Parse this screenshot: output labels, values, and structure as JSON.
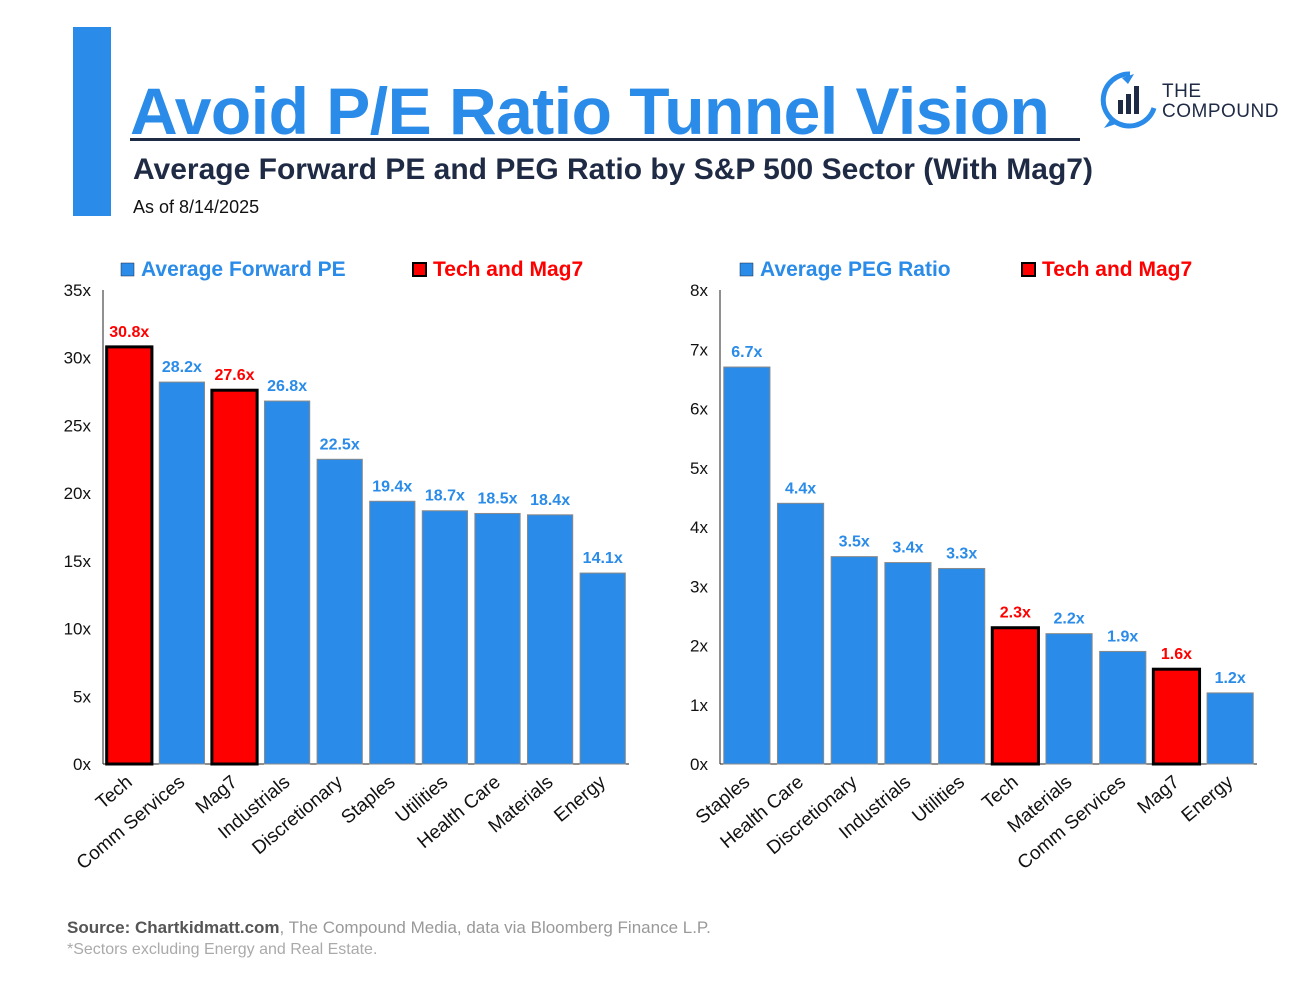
{
  "header": {
    "title": "Avoid P/E Ratio Tunnel Vision",
    "subtitle": "Average Forward PE and PEG Ratio by S&P 500 Sector (With Mag7)",
    "as_of": "As of 8/14/2025"
  },
  "brand": {
    "line1": "THE",
    "line2": "COMPOUND"
  },
  "colors": {
    "blue": "#2a8be8",
    "red": "#ff0000",
    "dark": "#1f2a44"
  },
  "chart_data": [
    {
      "type": "bar",
      "title": "Average Forward PE",
      "legend": [
        "Average Forward PE",
        "Tech and Mag7"
      ],
      "categories": [
        "Tech",
        "Comm Services",
        "Mag7",
        "Industrials",
        "Discretionary",
        "Staples",
        "Utilities",
        "Health Care",
        "Materials",
        "Energy"
      ],
      "values": [
        30.8,
        28.2,
        27.6,
        26.8,
        22.5,
        19.4,
        18.7,
        18.5,
        18.4,
        14.1
      ],
      "labels": [
        "30.8x",
        "28.2x",
        "27.6x",
        "26.8x",
        "22.5x",
        "19.4x",
        "18.7x",
        "18.5x",
        "18.4x",
        "14.1x"
      ],
      "highlight": [
        true,
        false,
        true,
        false,
        false,
        false,
        false,
        false,
        false,
        false
      ],
      "yticks": [
        "0x",
        "5x",
        "10x",
        "15x",
        "20x",
        "25x",
        "30x",
        "35x"
      ],
      "ylim": [
        0,
        35
      ]
    },
    {
      "type": "bar",
      "title": "Average PEG Ratio",
      "legend": [
        "Average PEG Ratio",
        "Tech and Mag7"
      ],
      "categories": [
        "Staples",
        "Health Care",
        "Discretionary",
        "Industrials",
        "Utilities",
        "Tech",
        "Materials",
        "Comm Services",
        "Mag7",
        "Energy"
      ],
      "values": [
        6.7,
        4.4,
        3.5,
        3.4,
        3.3,
        2.3,
        2.2,
        1.9,
        1.6,
        1.2
      ],
      "labels": [
        "6.7x",
        "4.4x",
        "3.5x",
        "3.4x",
        "3.3x",
        "2.3x",
        "2.2x",
        "1.9x",
        "1.6x",
        "1.2x"
      ],
      "highlight": [
        false,
        false,
        false,
        false,
        false,
        true,
        false,
        false,
        true,
        false
      ],
      "yticks": [
        "0x",
        "1x",
        "2x",
        "3x",
        "4x",
        "5x",
        "6x",
        "7x",
        "8x"
      ],
      "ylim": [
        0,
        8
      ]
    }
  ],
  "footer": {
    "source_label": "Source: Chartkidmatt.com",
    "source_rest": ", The Compound Media, data via Bloomberg Finance L.P.",
    "note": "*Sectors excluding Energy and Real Estate."
  }
}
